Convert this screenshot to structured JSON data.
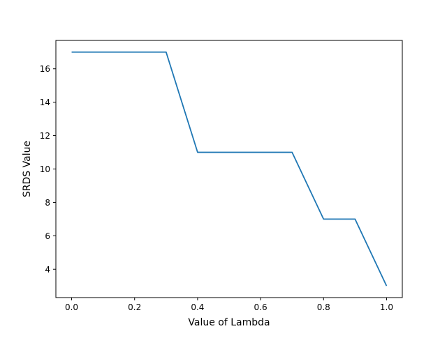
{
  "chart_data": {
    "type": "line",
    "title": "",
    "xlabel": "Value of Lambda",
    "ylabel": "SRDS Value",
    "xlim": [
      -0.05,
      1.05
    ],
    "ylim": [
      2.3,
      17.7
    ],
    "xticks": [
      0.0,
      0.2,
      0.4,
      0.6,
      0.8,
      1.0
    ],
    "xtick_labels": [
      "0.0",
      "0.2",
      "0.4",
      "0.6",
      "0.8",
      "1.0"
    ],
    "yticks": [
      4,
      6,
      8,
      10,
      12,
      14,
      16
    ],
    "ytick_labels": [
      "4",
      "6",
      "8",
      "10",
      "12",
      "14",
      "16"
    ],
    "grid": false,
    "series": [
      {
        "color": "#1f77b4",
        "x": [
          0.0,
          0.1,
          0.2,
          0.3,
          0.4,
          0.5,
          0.6,
          0.7,
          0.8,
          0.9,
          1.0
        ],
        "y": [
          17,
          17,
          17,
          17,
          11,
          11,
          11,
          11,
          7,
          7,
          3
        ]
      }
    ]
  }
}
